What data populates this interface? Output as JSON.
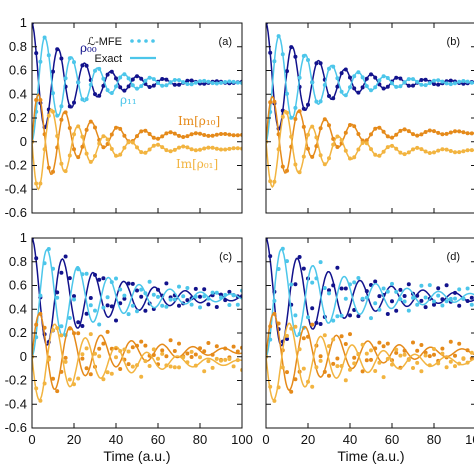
{
  "colors": {
    "rho00": "#12128c",
    "rho11": "#4cc6ea",
    "im10": "#e58a1a",
    "im01": "#f2b440",
    "axis": "#111111"
  },
  "legend": {
    "mfe_label": "ℒ-MFE",
    "exact_label": "Exact"
  },
  "annotations": {
    "rho00": "ρ₀₀",
    "rho11": "ρ₁₁",
    "im10": "Im[ρ₁₀]",
    "im01": "Im[ρ₀₁]"
  },
  "chart_data": [
    {
      "type": "line",
      "panel_label": "(a)",
      "xlabel": "",
      "ylabel": "",
      "xlim": [
        0,
        100
      ],
      "ylim": [
        -0.6,
        1.0
      ],
      "yticks": [
        "-0.6",
        "-0.4",
        "-0.2",
        "0",
        "0.2",
        "0.4",
        "0.6",
        "0.8",
        "1"
      ],
      "xticks": [],
      "model": {
        "p": 0.5,
        "A": 0.5,
        "gamma": 0.045,
        "omega": 0.5,
        "B": 0.45,
        "c": 0.06,
        "ds": 1.0,
        "n": 0
      },
      "series": [
        {
          "name": "ρ₀₀",
          "key": "rho00",
          "x": [
            0,
            4,
            7,
            12,
            18,
            25,
            32,
            40,
            50,
            60,
            70,
            80,
            90,
            100
          ],
          "y": [
            1.0,
            0.64,
            0.89,
            0.32,
            0.76,
            0.36,
            0.66,
            0.42,
            0.58,
            0.46,
            0.54,
            0.48,
            0.52,
            0.5
          ]
        },
        {
          "name": "ρ₁₁",
          "key": "rho11",
          "x": [
            0,
            4,
            7,
            12,
            18,
            25,
            32,
            40,
            50,
            60,
            70,
            80,
            90,
            100
          ],
          "y": [
            0.0,
            0.36,
            0.11,
            0.68,
            0.24,
            0.64,
            0.34,
            0.58,
            0.42,
            0.54,
            0.46,
            0.52,
            0.48,
            0.5
          ]
        },
        {
          "name": "Im[ρ₁₀]",
          "key": "im10",
          "x": [
            0,
            3,
            9,
            15,
            22,
            28,
            35,
            42,
            50,
            60,
            70,
            80,
            90,
            100
          ],
          "y": [
            0.0,
            0.38,
            -0.34,
            0.32,
            -0.24,
            0.24,
            -0.18,
            0.2,
            -0.1,
            0.14,
            -0.02,
            0.1,
            0.02,
            0.08
          ]
        },
        {
          "name": "Im[ρ₀₁]",
          "key": "im01",
          "x": [
            0,
            3,
            9,
            15,
            22,
            28,
            35,
            42,
            50,
            60,
            70,
            80,
            90,
            100
          ],
          "y": [
            0.0,
            -0.38,
            0.34,
            -0.32,
            0.24,
            -0.24,
            0.18,
            -0.2,
            0.1,
            -0.14,
            0.02,
            -0.1,
            -0.02,
            -0.08
          ]
        }
      ]
    },
    {
      "type": "line",
      "panel_label": "(b)",
      "xlabel": "",
      "ylabel": "",
      "xlim": [
        0,
        100
      ],
      "ylim": [
        -0.6,
        1.0
      ],
      "yticks": [],
      "xticks": [],
      "model": {
        "p": 0.5,
        "A": 0.5,
        "gamma": 0.04,
        "omega": 0.5,
        "B": 0.42,
        "c": 0.08,
        "ds": 1.0,
        "n": 0
      },
      "series": [
        {
          "name": "ρ₀₀",
          "key": "rho00",
          "x": [
            0,
            7,
            12,
            18,
            25,
            32,
            40,
            50,
            60,
            70,
            80,
            90,
            100
          ],
          "y": [
            1.0,
            0.86,
            0.35,
            0.78,
            0.4,
            0.7,
            0.46,
            0.62,
            0.5,
            0.58,
            0.52,
            0.56,
            0.54
          ]
        },
        {
          "name": "ρ₁₁",
          "key": "rho11",
          "x": [
            0,
            7,
            12,
            18,
            25,
            32,
            40,
            50,
            60,
            70,
            80,
            90,
            100
          ],
          "y": [
            0.0,
            0.14,
            0.64,
            0.22,
            0.6,
            0.3,
            0.54,
            0.38,
            0.5,
            0.42,
            0.48,
            0.44,
            0.46
          ]
        },
        {
          "name": "Im[ρ₁₀]",
          "key": "im10",
          "x": [
            0,
            3,
            9,
            15,
            22,
            28,
            35,
            42,
            50,
            60,
            70,
            80,
            90,
            100
          ],
          "y": [
            0.0,
            0.38,
            -0.3,
            0.3,
            -0.2,
            0.24,
            -0.14,
            0.2,
            -0.06,
            0.16,
            0.0,
            0.12,
            0.04,
            0.1
          ]
        },
        {
          "name": "Im[ρ₀₁]",
          "key": "im01",
          "x": [
            0,
            3,
            9,
            15,
            22,
            28,
            35,
            42,
            50,
            60,
            70,
            80,
            90,
            100
          ],
          "y": [
            0.0,
            -0.38,
            0.3,
            -0.3,
            0.2,
            -0.24,
            0.14,
            -0.2,
            0.06,
            -0.16,
            0.0,
            -0.12,
            -0.04,
            -0.1
          ]
        }
      ]
    },
    {
      "type": "line",
      "panel_label": "(c)",
      "xlabel": "Time (a.u.)",
      "ylabel": "",
      "xlim": [
        0,
        100
      ],
      "ylim": [
        -0.6,
        1.0
      ],
      "yticks": [
        "-0.6",
        "-0.4",
        "-0.2",
        "0",
        "0.2",
        "0.4",
        "0.6",
        "0.8",
        "1"
      ],
      "xticks": [
        "0",
        "20",
        "40",
        "60",
        "80",
        "100"
      ],
      "model": {
        "p": 0.5,
        "A": 0.5,
        "gamma": 0.03,
        "omega": 0.43,
        "B": 0.4,
        "c": 0.05,
        "ds": 0.92,
        "n": 0.05
      },
      "series": [
        {
          "name": "ρ₀₀",
          "key": "rho00",
          "x": [
            0,
            6,
            12,
            20,
            28,
            35,
            43,
            50,
            58,
            65,
            73,
            80,
            88,
            95,
            100
          ],
          "y": [
            1.0,
            0.88,
            0.28,
            0.78,
            0.34,
            0.66,
            0.38,
            0.62,
            0.42,
            0.58,
            0.44,
            0.56,
            0.46,
            0.54,
            0.5
          ]
        },
        {
          "name": "ρ₁₁",
          "key": "rho11",
          "x": [
            0,
            6,
            12,
            20,
            28,
            35,
            43,
            50,
            58,
            65,
            73,
            80,
            88,
            95,
            100
          ],
          "y": [
            0.0,
            0.12,
            0.72,
            0.22,
            0.66,
            0.34,
            0.62,
            0.38,
            0.58,
            0.42,
            0.56,
            0.44,
            0.54,
            0.46,
            0.5
          ]
        },
        {
          "name": "Im[ρ₁₀]",
          "key": "im10",
          "x": [
            0,
            4,
            10,
            18,
            25,
            32,
            40,
            48,
            55,
            62,
            70,
            78,
            85,
            92,
            100
          ],
          "y": [
            0.0,
            0.4,
            -0.34,
            0.3,
            -0.26,
            0.24,
            -0.2,
            0.18,
            -0.14,
            0.14,
            -0.1,
            0.1,
            -0.06,
            0.1,
            0.1
          ]
        },
        {
          "name": "Im[ρ₀₁]",
          "key": "im01",
          "x": [
            0,
            4,
            10,
            18,
            25,
            32,
            40,
            48,
            55,
            62,
            70,
            78,
            85,
            92,
            100
          ],
          "y": [
            0.0,
            -0.4,
            0.34,
            -0.3,
            0.26,
            -0.24,
            0.2,
            -0.18,
            0.14,
            -0.14,
            0.1,
            -0.1,
            0.06,
            -0.1,
            -0.1
          ]
        }
      ]
    },
    {
      "type": "line",
      "panel_label": "(d)",
      "xlabel": "Time (a.u.)",
      "ylabel": "",
      "xlim": [
        0,
        100
      ],
      "ylim": [
        -0.6,
        1.0
      ],
      "yticks": [],
      "xticks": [
        "0",
        "20",
        "40",
        "60",
        "80",
        "100"
      ],
      "model": {
        "p": 0.5,
        "A": 0.5,
        "gamma": 0.028,
        "omega": 0.42,
        "B": 0.4,
        "c": 0.04,
        "ds": 0.88,
        "n": 0.06
      },
      "series": [
        {
          "name": "ρ₀₀",
          "key": "rho00",
          "x": [
            0,
            6,
            12,
            20,
            28,
            35,
            43,
            50,
            58,
            65,
            73,
            80,
            88,
            95,
            100
          ],
          "y": [
            1.0,
            0.86,
            0.3,
            0.76,
            0.36,
            0.68,
            0.42,
            0.64,
            0.46,
            0.6,
            0.48,
            0.6,
            0.52,
            0.58,
            0.56
          ]
        },
        {
          "name": "ρ₁₁",
          "key": "rho11",
          "x": [
            0,
            6,
            12,
            20,
            28,
            35,
            43,
            50,
            58,
            65,
            73,
            80,
            88,
            95,
            100
          ],
          "y": [
            0.0,
            0.14,
            0.7,
            0.24,
            0.64,
            0.32,
            0.58,
            0.36,
            0.54,
            0.4,
            0.52,
            0.4,
            0.48,
            0.42,
            0.44
          ]
        },
        {
          "name": "Im[ρ₁₀]",
          "key": "im10",
          "x": [
            0,
            4,
            10,
            18,
            25,
            32,
            40,
            48,
            55,
            62,
            70,
            78,
            85,
            92,
            100
          ],
          "y": [
            0.0,
            0.4,
            -0.34,
            0.3,
            -0.26,
            0.22,
            -0.2,
            0.16,
            -0.14,
            0.12,
            -0.12,
            0.08,
            -0.08,
            0.06,
            -0.04
          ]
        },
        {
          "name": "Im[ρ₀₁]",
          "key": "im01",
          "x": [
            0,
            4,
            10,
            18,
            25,
            32,
            40,
            48,
            55,
            62,
            70,
            78,
            85,
            92,
            100
          ],
          "y": [
            0.0,
            -0.4,
            0.34,
            -0.3,
            0.26,
            -0.22,
            0.2,
            -0.16,
            0.14,
            -0.12,
            0.12,
            -0.08,
            0.08,
            -0.06,
            0.04
          ]
        }
      ]
    }
  ]
}
